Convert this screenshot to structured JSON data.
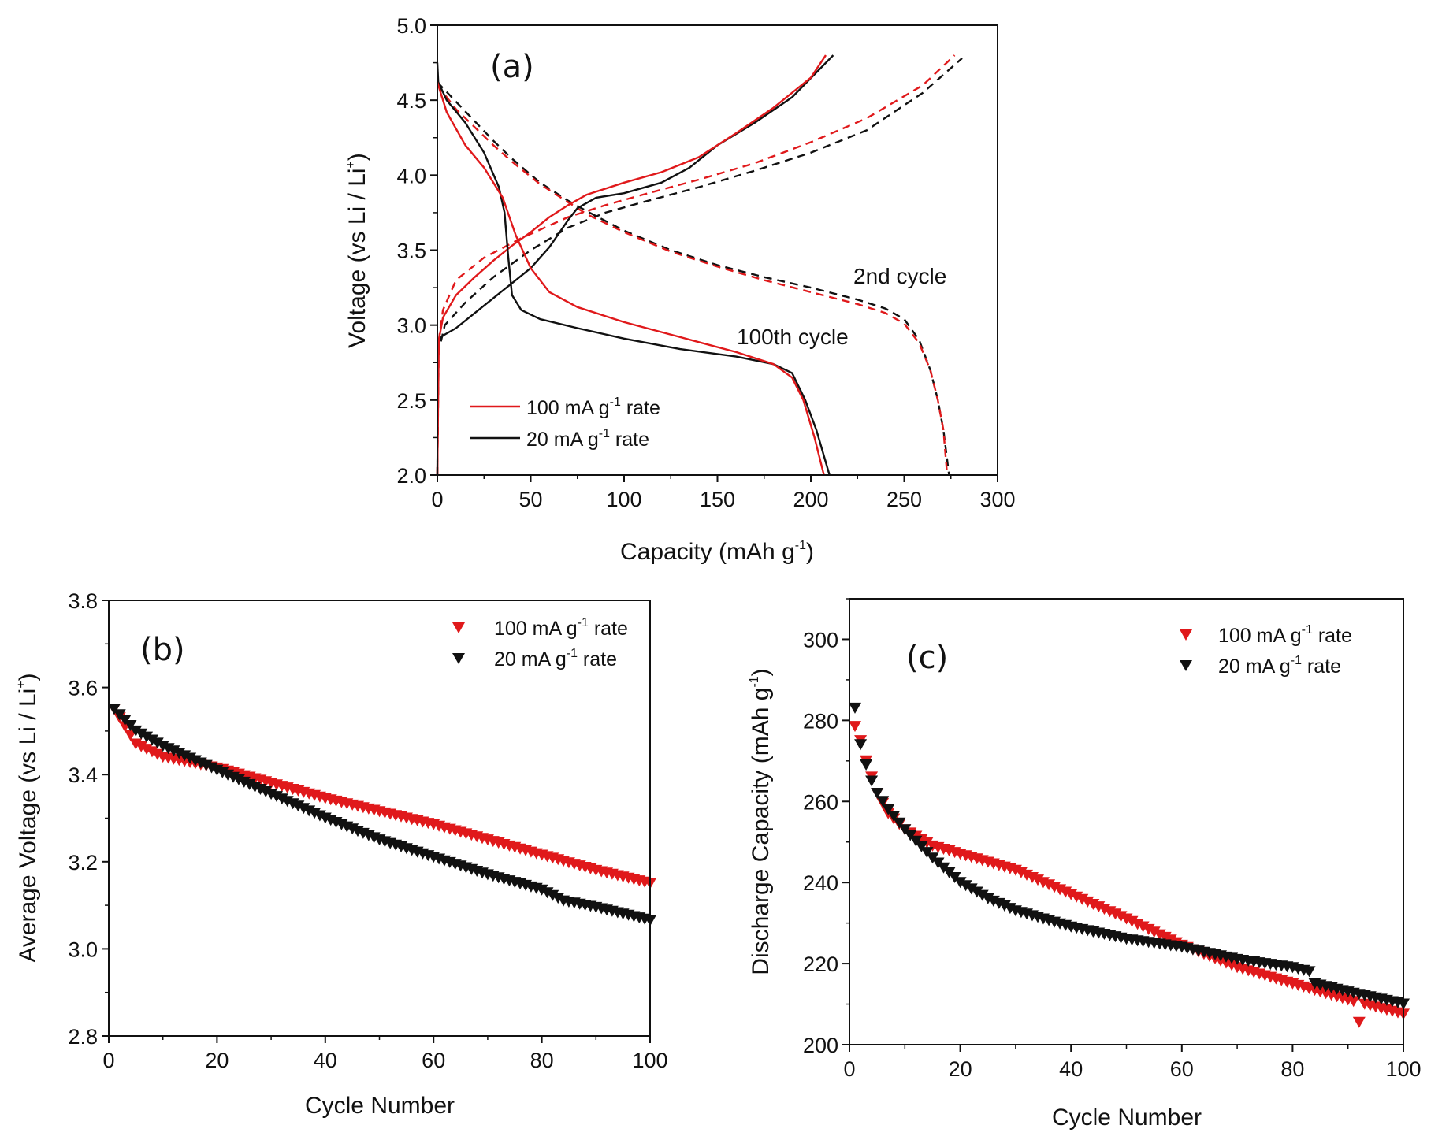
{
  "chart_data": [
    {
      "id": "a",
      "type": "line",
      "panel_label": "(a)",
      "xlabel": "Capacity (mAh g",
      "xlabel_sup": "-1",
      "xlabel_end": ")",
      "ylabel": "Voltage (vs Li / Li",
      "ylabel_sup": "+",
      "ylabel_end": ")",
      "xlim": [
        0,
        300
      ],
      "ylim": [
        2.0,
        5.0
      ],
      "xticks": [
        0,
        50,
        100,
        150,
        200,
        250,
        300
      ],
      "xtick_labels": [
        "0",
        "50",
        "100",
        "150",
        "200",
        "250",
        "300"
      ],
      "yticks": [
        2.0,
        2.5,
        3.0,
        3.5,
        4.0,
        4.5,
        5.0
      ],
      "ytick_labels": [
        "2.0",
        "2.5",
        "3.0",
        "3.5",
        "4.0",
        "4.5",
        "5.0"
      ],
      "grid": false,
      "legend": {
        "placement": "bottom-left",
        "entries": [
          {
            "label": "100 mA g",
            "sup": "-1",
            "label_end": " rate",
            "color": "#e0191b",
            "style": "solid"
          },
          {
            "label": "20 mA g",
            "sup": "-1",
            "label_end": " rate",
            "color": "#111111",
            "style": "solid"
          }
        ]
      },
      "annotations": [
        {
          "text": "2nd cycle",
          "x": 222,
          "y": 3.3
        },
        {
          "text": "100th cycle",
          "x": 158,
          "y": 2.9
        }
      ],
      "series": [
        {
          "name": "2nd cycle charge, 20 mA g-1",
          "color": "#111111",
          "dash": true,
          "points": [
            [
              0,
              2.0
            ],
            [
              0.6,
              2.82
            ],
            [
              4,
              3.0
            ],
            [
              15,
              3.15
            ],
            [
              30,
              3.32
            ],
            [
              50,
              3.5
            ],
            [
              70,
              3.65
            ],
            [
              90,
              3.75
            ],
            [
              110,
              3.82
            ],
            [
              140,
              3.92
            ],
            [
              170,
              4.03
            ],
            [
              200,
              4.15
            ],
            [
              230,
              4.3
            ],
            [
              260,
              4.55
            ],
            [
              281,
              4.78
            ]
          ]
        },
        {
          "name": "2nd cycle charge, 100 mA g-1",
          "color": "#e0191b",
          "dash": true,
          "points": [
            [
              0,
              2.0
            ],
            [
              0.8,
              2.9
            ],
            [
              3,
              3.1
            ],
            [
              10,
              3.3
            ],
            [
              25,
              3.45
            ],
            [
              45,
              3.58
            ],
            [
              70,
              3.72
            ],
            [
              90,
              3.8
            ],
            [
              110,
              3.87
            ],
            [
              140,
              3.97
            ],
            [
              170,
              4.08
            ],
            [
              200,
              4.22
            ],
            [
              230,
              4.38
            ],
            [
              260,
              4.6
            ],
            [
              277,
              4.8
            ]
          ]
        },
        {
          "name": "2nd cycle discharge, 20 mA g-1",
          "color": "#111111",
          "dash": true,
          "points": [
            [
              0,
              4.62
            ],
            [
              10,
              4.49
            ],
            [
              20,
              4.36
            ],
            [
              30,
              4.23
            ],
            [
              40,
              4.11
            ],
            [
              55,
              3.95
            ],
            [
              70,
              3.83
            ],
            [
              80,
              3.76
            ],
            [
              100,
              3.63
            ],
            [
              125,
              3.5
            ],
            [
              150,
              3.4
            ],
            [
              175,
              3.32
            ],
            [
              200,
              3.25
            ],
            [
              225,
              3.17
            ],
            [
              240,
              3.11
            ],
            [
              250,
              3.04
            ],
            [
              258,
              2.9
            ],
            [
              264,
              2.7
            ],
            [
              268,
              2.5
            ],
            [
              271,
              2.3
            ],
            [
              274,
              2.0
            ]
          ]
        },
        {
          "name": "2nd cycle discharge, 100 mA g-1",
          "color": "#e0191b",
          "dash": true,
          "points": [
            [
              0,
              4.6
            ],
            [
              10,
              4.44
            ],
            [
              20,
              4.32
            ],
            [
              30,
              4.2
            ],
            [
              40,
              4.09
            ],
            [
              55,
              3.94
            ],
            [
              70,
              3.82
            ],
            [
              80,
              3.74
            ],
            [
              100,
              3.62
            ],
            [
              125,
              3.49
            ],
            [
              150,
              3.39
            ],
            [
              175,
              3.3
            ],
            [
              200,
              3.22
            ],
            [
              225,
              3.14
            ],
            [
              240,
              3.08
            ],
            [
              250,
              3.01
            ],
            [
              258,
              2.88
            ],
            [
              264,
              2.7
            ],
            [
              268,
              2.5
            ],
            [
              271,
              2.3
            ],
            [
              273,
              2.0
            ]
          ]
        },
        {
          "name": "100th cycle charge, 20 mA g-1",
          "color": "#111111",
          "dash": false,
          "points": [
            [
              0,
              2.0
            ],
            [
              0.6,
              2.9
            ],
            [
              3,
              2.93
            ],
            [
              10,
              2.98
            ],
            [
              20,
              3.08
            ],
            [
              30,
              3.18
            ],
            [
              40,
              3.28
            ],
            [
              50,
              3.38
            ],
            [
              60,
              3.52
            ],
            [
              70,
              3.7
            ],
            [
              75,
              3.78
            ],
            [
              85,
              3.85
            ],
            [
              100,
              3.88
            ],
            [
              120,
              3.95
            ],
            [
              135,
              4.05
            ],
            [
              150,
              4.2
            ],
            [
              170,
              4.35
            ],
            [
              190,
              4.52
            ],
            [
              212,
              4.8
            ]
          ]
        },
        {
          "name": "100th cycle charge, 100 mA g-1",
          "color": "#e0191b",
          "dash": false,
          "points": [
            [
              0,
              2.0
            ],
            [
              0.8,
              2.9
            ],
            [
              3,
              3.05
            ],
            [
              10,
              3.2
            ],
            [
              20,
              3.32
            ],
            [
              30,
              3.43
            ],
            [
              40,
              3.53
            ],
            [
              50,
              3.62
            ],
            [
              60,
              3.72
            ],
            [
              70,
              3.8
            ],
            [
              80,
              3.87
            ],
            [
              100,
              3.95
            ],
            [
              120,
              4.02
            ],
            [
              140,
              4.12
            ],
            [
              160,
              4.28
            ],
            [
              180,
              4.45
            ],
            [
              200,
              4.65
            ],
            [
              208,
              4.8
            ]
          ]
        },
        {
          "name": "100th cycle discharge, 20 mA g-1",
          "color": "#111111",
          "dash": false,
          "points": [
            [
              0,
              4.75
            ],
            [
              0.5,
              4.62
            ],
            [
              5,
              4.5
            ],
            [
              15,
              4.35
            ],
            [
              25,
              4.15
            ],
            [
              33,
              3.92
            ],
            [
              36,
              3.75
            ],
            [
              38,
              3.45
            ],
            [
              40,
              3.2
            ],
            [
              45,
              3.1
            ],
            [
              55,
              3.04
            ],
            [
              75,
              2.98
            ],
            [
              100,
              2.91
            ],
            [
              130,
              2.84
            ],
            [
              160,
              2.79
            ],
            [
              180,
              2.74
            ],
            [
              190,
              2.68
            ],
            [
              197,
              2.5
            ],
            [
              203,
              2.3
            ],
            [
              210,
              2.0
            ]
          ]
        },
        {
          "name": "100th cycle discharge, 100 mA g-1",
          "color": "#e0191b",
          "dash": false,
          "points": [
            [
              0,
              4.62
            ],
            [
              5,
              4.42
            ],
            [
              15,
              4.2
            ],
            [
              25,
              4.05
            ],
            [
              35,
              3.85
            ],
            [
              42,
              3.6
            ],
            [
              50,
              3.38
            ],
            [
              60,
              3.22
            ],
            [
              75,
              3.12
            ],
            [
              100,
              3.02
            ],
            [
              130,
              2.92
            ],
            [
              160,
              2.82
            ],
            [
              180,
              2.74
            ],
            [
              190,
              2.65
            ],
            [
              196,
              2.5
            ],
            [
              202,
              2.25
            ],
            [
              207,
              2.0
            ]
          ]
        }
      ]
    },
    {
      "id": "b",
      "type": "scatter",
      "panel_label": "(b)",
      "xlabel": "Cycle Number",
      "ylabel": "Average Voltage (vs Li / Li",
      "ylabel_sup": "+",
      "ylabel_end": ")",
      "xlim": [
        0,
        100
      ],
      "ylim": [
        2.8,
        3.8
      ],
      "xticks": [
        0,
        20,
        40,
        60,
        80,
        100
      ],
      "xtick_labels": [
        "0",
        "20",
        "40",
        "60",
        "80",
        "100"
      ],
      "yticks": [
        2.8,
        3.0,
        3.2,
        3.4,
        3.6,
        3.8
      ],
      "ytick_labels": [
        "2.8",
        "3.0",
        "3.2",
        "3.4",
        "3.6",
        "3.8"
      ],
      "grid": false,
      "legend": {
        "placement": "top-right",
        "entries": [
          {
            "label": "100 mA g",
            "sup": "-1",
            "label_end": " rate",
            "color": "#e0191b",
            "marker": "triangle-down"
          },
          {
            "label": "20 mA g",
            "sup": "-1",
            "label_end": " rate",
            "color": "#111111",
            "marker": "triangle-down"
          }
        ]
      },
      "series": [
        {
          "name": "100 mA g-1 rate",
          "color": "#e0191b",
          "cycles": [
            1,
            100
          ],
          "anchors": [
            [
              1,
              3.55
            ],
            [
              5,
              3.47
            ],
            [
              10,
              3.44
            ],
            [
              20,
              3.415
            ],
            [
              30,
              3.38
            ],
            [
              40,
              3.345
            ],
            [
              50,
              3.315
            ],
            [
              60,
              3.285
            ],
            [
              70,
              3.25
            ],
            [
              80,
              3.215
            ],
            [
              90,
              3.18
            ],
            [
              100,
              3.15
            ]
          ]
        },
        {
          "name": "20 mA g-1 rate",
          "color": "#111111",
          "cycles": [
            1,
            100
          ],
          "anchors": [
            [
              1,
              3.55
            ],
            [
              5,
              3.5
            ],
            [
              10,
              3.465
            ],
            [
              20,
              3.41
            ],
            [
              30,
              3.355
            ],
            [
              40,
              3.3
            ],
            [
              50,
              3.25
            ],
            [
              60,
              3.21
            ],
            [
              70,
              3.17
            ],
            [
              80,
              3.135
            ],
            [
              84,
              3.11
            ],
            [
              90,
              3.095
            ],
            [
              100,
              3.065
            ]
          ]
        }
      ]
    },
    {
      "id": "c",
      "type": "scatter",
      "panel_label": "(c)",
      "xlabel": "Cycle Number",
      "ylabel": "Discharge Capacity (mAh g",
      "ylabel_sup": "-1",
      "ylabel_end": ")",
      "xlim": [
        0,
        100
      ],
      "ylim": [
        200,
        310
      ],
      "xticks": [
        0,
        20,
        40,
        60,
        80,
        100
      ],
      "xtick_labels": [
        "0",
        "20",
        "40",
        "60",
        "80",
        "100"
      ],
      "yticks": [
        200,
        220,
        240,
        260,
        280,
        300
      ],
      "ytick_labels": [
        "200",
        "220",
        "240",
        "260",
        "280",
        "300"
      ],
      "grid": false,
      "legend": {
        "placement": "top-right",
        "entries": [
          {
            "label": "100 mA g",
            "sup": "-1",
            "label_end": " rate",
            "color": "#e0191b",
            "marker": "triangle-down"
          },
          {
            "label": "20 mA g",
            "sup": "-1",
            "label_end": " rate",
            "color": "#111111",
            "marker": "triangle-down"
          }
        ]
      },
      "series": [
        {
          "name": "100 mA g-1 rate",
          "color": "#e0191b",
          "cycles": [
            1,
            100
          ],
          "anchors": [
            [
              1,
              278.5
            ],
            [
              2,
              275
            ],
            [
              3,
              270
            ],
            [
              5,
              262
            ],
            [
              7,
              257
            ],
            [
              10,
              253
            ],
            [
              15,
              249
            ],
            [
              20,
              247
            ],
            [
              30,
              243
            ],
            [
              40,
              237
            ],
            [
              50,
              231
            ],
            [
              60,
              224.5
            ],
            [
              70,
              219
            ],
            [
              80,
              215
            ],
            [
              90,
              211
            ],
            [
              100,
              207.5
            ]
          ],
          "outliers": [
            [
              92,
              205.5
            ]
          ]
        },
        {
          "name": "20 mA g-1 rate",
          "color": "#111111",
          "cycles": [
            1,
            100
          ],
          "anchors": [
            [
              1,
              283
            ],
            [
              2,
              274
            ],
            [
              3,
              269
            ],
            [
              4,
              265
            ],
            [
              5,
              262
            ],
            [
              7,
              258
            ],
            [
              10,
              253
            ],
            [
              15,
              246
            ],
            [
              20,
              240
            ],
            [
              25,
              236
            ],
            [
              30,
              233
            ],
            [
              40,
              229
            ],
            [
              50,
              226
            ],
            [
              60,
              224
            ],
            [
              70,
              221
            ],
            [
              80,
              219
            ],
            [
              83,
              218
            ],
            [
              84,
              215
            ],
            [
              90,
              213
            ],
            [
              100,
              210
            ]
          ]
        }
      ]
    }
  ]
}
